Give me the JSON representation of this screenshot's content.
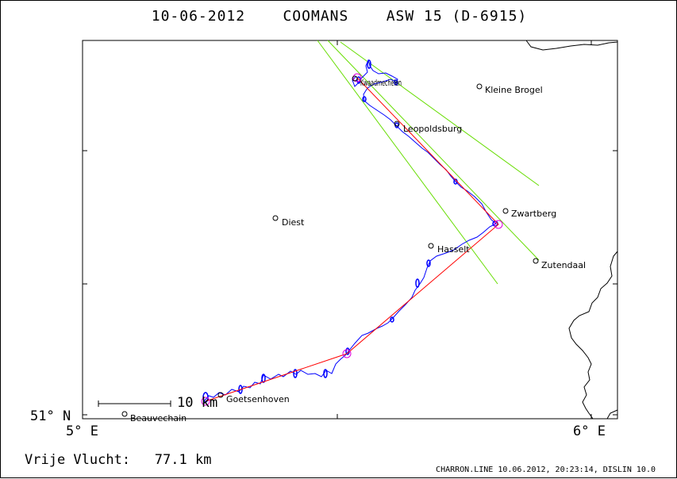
{
  "title": {
    "date": "10-06-2012",
    "pilot": "COOMANS",
    "glider": "ASW 15 (D-6915)"
  },
  "axes": {
    "lat_label": "51° N",
    "lon_left": "5° E",
    "lon_right": "6° E"
  },
  "scale_bar": {
    "label": "10 km"
  },
  "towns": [
    {
      "name": "Kleine Brogel"
    },
    {
      "name": "Leopoldsburg"
    },
    {
      "name": "Zwartberg"
    },
    {
      "name": "Diest"
    },
    {
      "name": "Hasselt"
    },
    {
      "name": "Zutendaal"
    },
    {
      "name": "Goetsenhoven"
    },
    {
      "name": "Beauvechain"
    },
    {
      "name": "Kwaadmechelen"
    }
  ],
  "flight": {
    "label": "Vrije Vlucht:",
    "distance": "77.1 km"
  },
  "footer": "CHARRON.LINE 10.06.2012, 20:23:14, DISLIN 10.0",
  "colors": {
    "track": "#0000ff",
    "task_line": "#ff0000",
    "sector_lines": "#66dd00",
    "turnpoint": "#dd00dd",
    "border": "#000000"
  }
}
